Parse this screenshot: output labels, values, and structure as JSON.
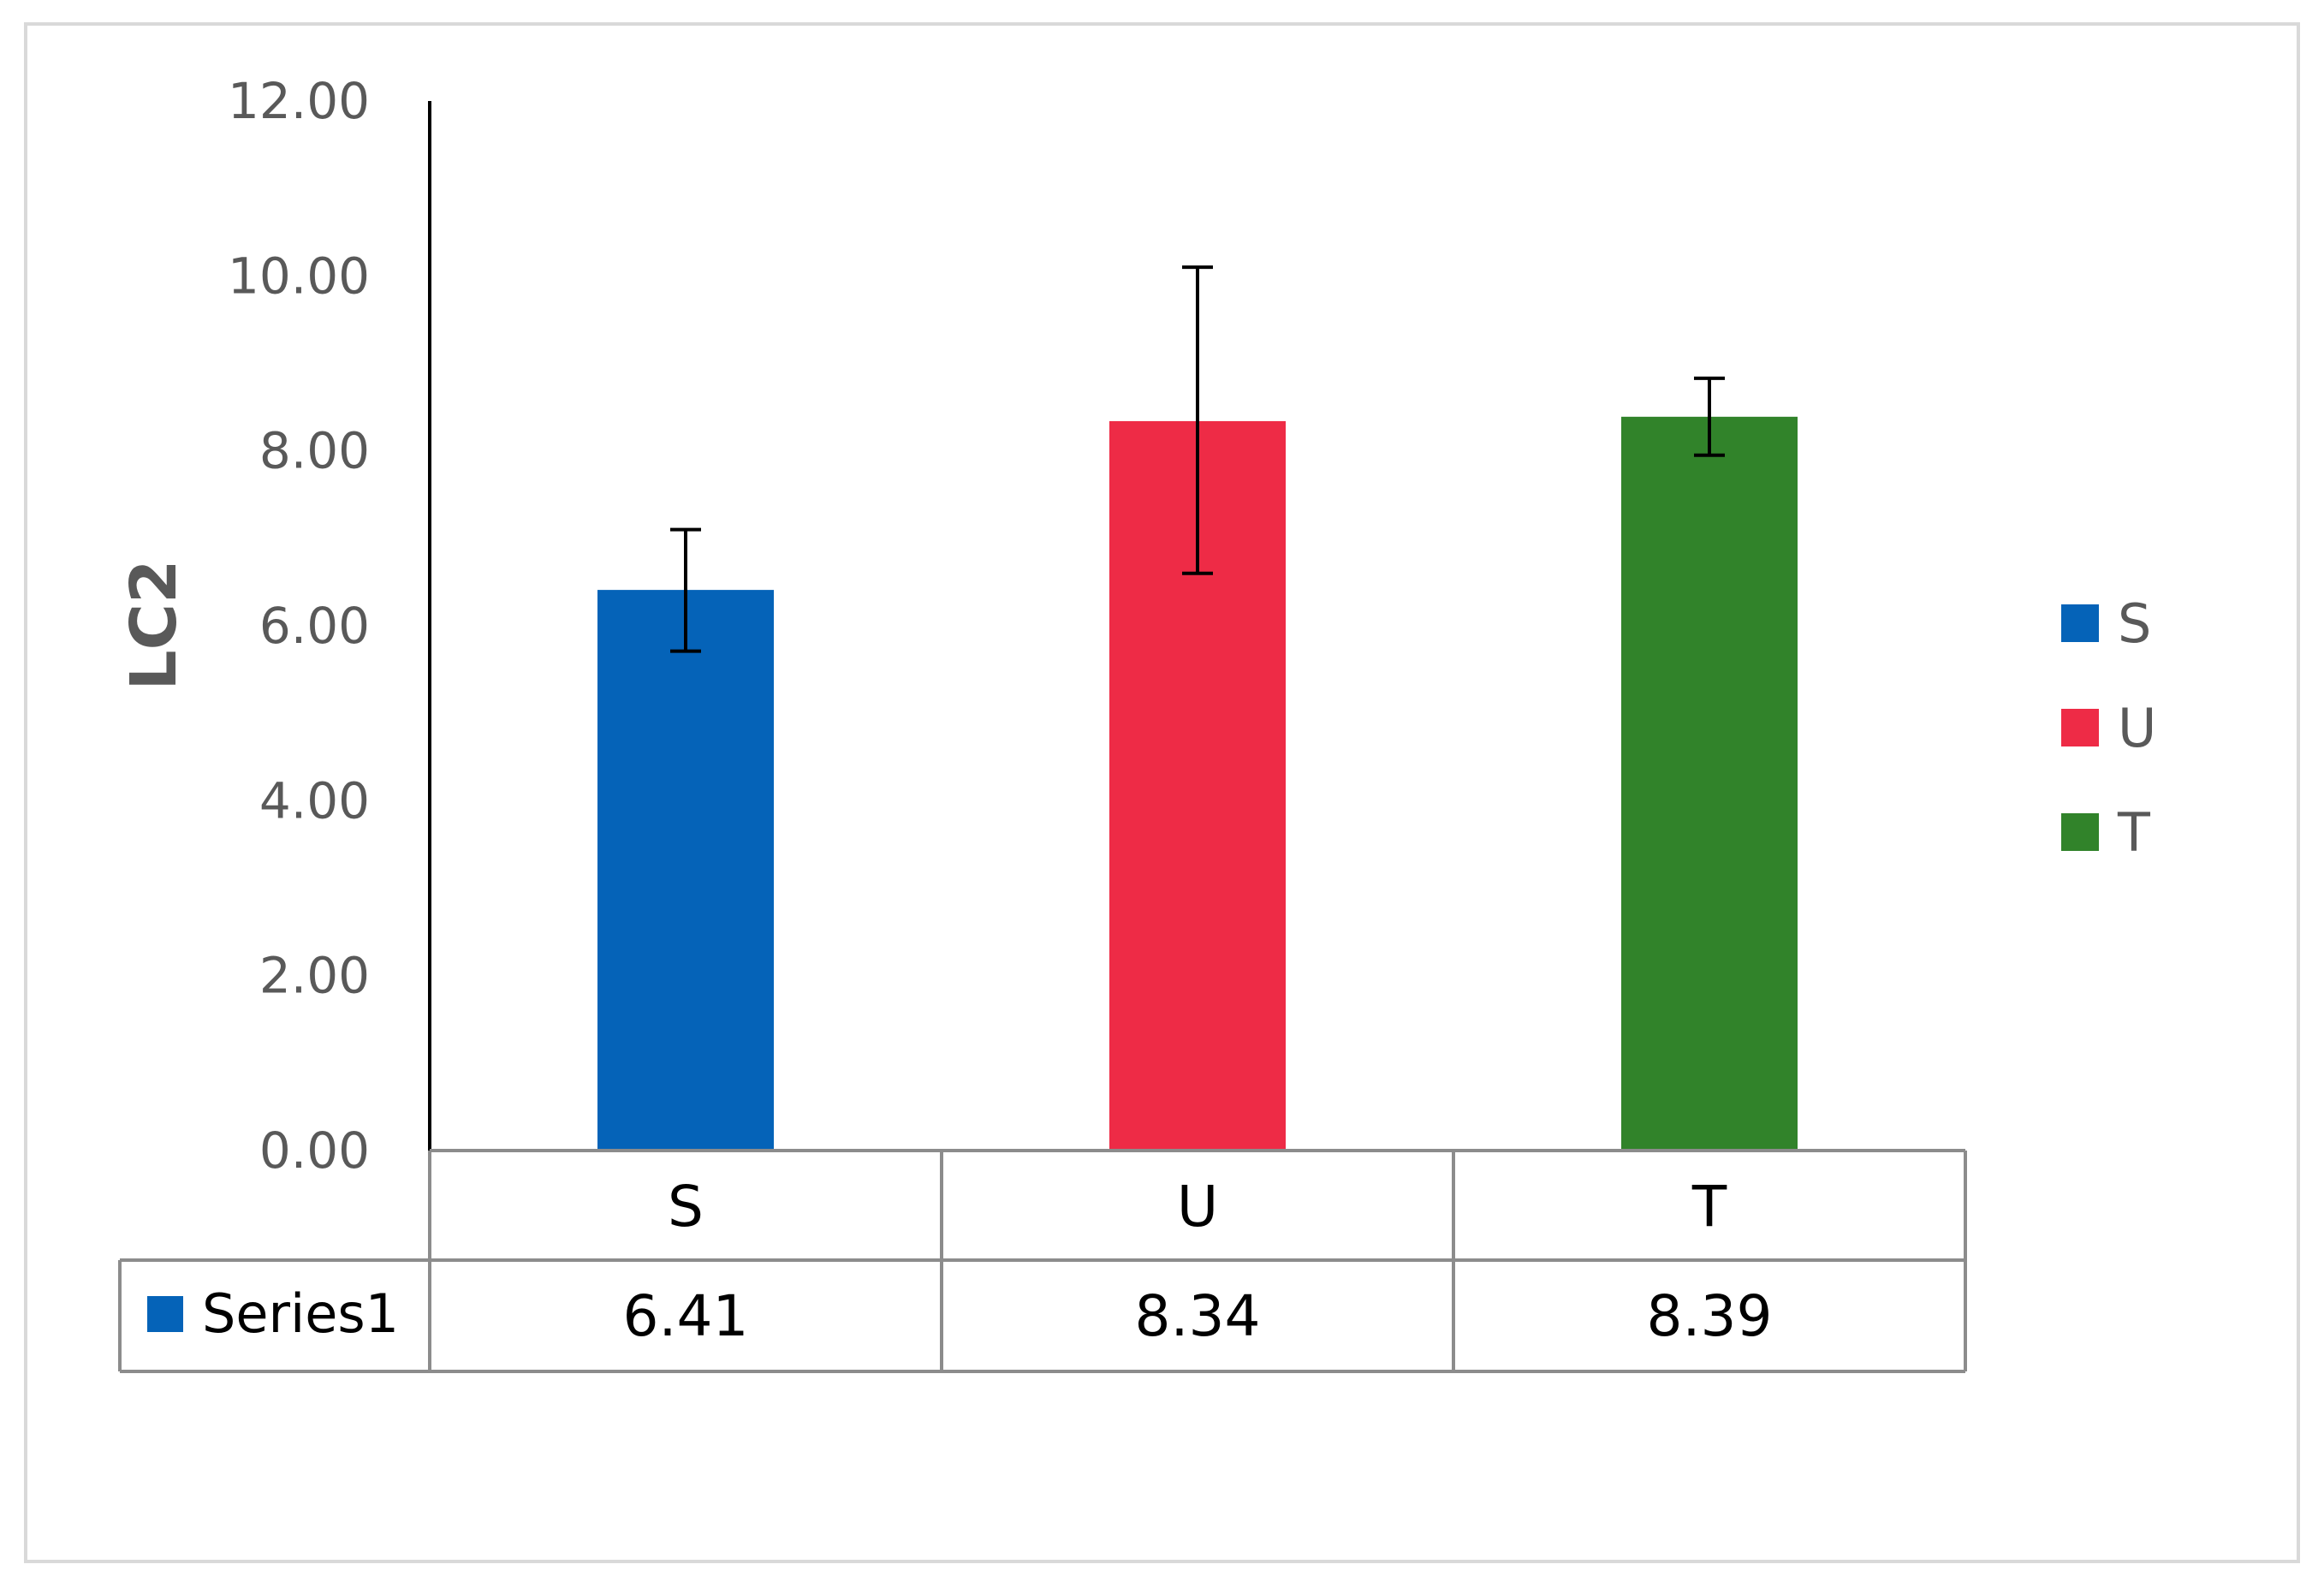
{
  "chart_data": {
    "type": "bar",
    "categories": [
      "S",
      "U",
      "T"
    ],
    "series": [
      {
        "name": "Series1",
        "values": [
          6.41,
          8.34,
          8.39
        ],
        "error": [
          [
            5.71,
            7.1
          ],
          [
            6.6,
            10.1
          ],
          [
            7.95,
            8.83
          ]
        ]
      }
    ],
    "colors": [
      "#0563b8",
      "#ee2b46",
      "#31832a"
    ],
    "value_labels": [
      "6.41",
      "8.34",
      "8.39"
    ],
    "ylabel": "LC2",
    "ylim": [
      0,
      12
    ],
    "yticks": [
      0,
      2,
      4,
      6,
      8,
      10,
      12
    ],
    "ytick_labels": [
      "0.00",
      "2.00",
      "4.00",
      "6.00",
      "8.00",
      "10.00",
      "12.00"
    ],
    "grid": false,
    "legend": {
      "position": "right",
      "entries": [
        "S",
        "U",
        "T"
      ]
    },
    "data_table": {
      "series_label": "Series1",
      "series_color": "#0563b8"
    }
  }
}
